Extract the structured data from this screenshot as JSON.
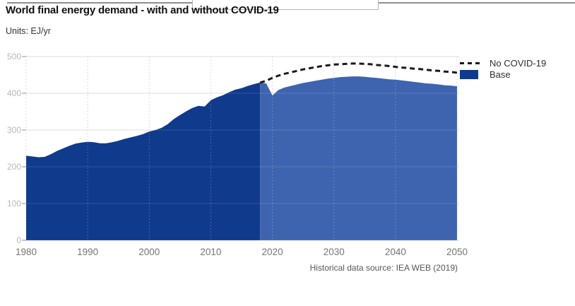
{
  "chart_data": {
    "type": "area",
    "title": "World final energy demand - with and without COVID-19",
    "units_label": "Units: EJ/yr",
    "source_note": "Historical data source: IEA WEB (2019)",
    "xlabel": "",
    "ylabel": "EJ/yr",
    "xlim": [
      1980,
      2050
    ],
    "ylim": [
      0,
      500
    ],
    "x_ticks": [
      1980,
      1990,
      2000,
      2010,
      2020,
      2030,
      2040,
      2050
    ],
    "y_ticks": [
      0,
      100,
      200,
      300,
      400,
      500
    ],
    "grid": {
      "horizontal": "solid",
      "vertical": "dotted"
    },
    "legend_position": "top-right",
    "legend": [
      {
        "label": "No COVID-19",
        "symbol": "dashed-line",
        "color": "#1a1a1a"
      },
      {
        "label": "Base",
        "symbol": "filled-box",
        "color": "#103a8c"
      }
    ],
    "colors": {
      "base_historical": "#103a8c",
      "base_projection": "#3e64af",
      "no_covid_line": "#1a1a1a",
      "gridline": "#d9d9d9",
      "tick_label_y": "#b8b8b8",
      "tick_label_x": "#757575"
    },
    "series": [
      {
        "name": "Base",
        "style": "area",
        "historical_until": 2018,
        "points": [
          [
            1980,
            230
          ],
          [
            1981,
            228
          ],
          [
            1982,
            226
          ],
          [
            1983,
            227
          ],
          [
            1984,
            234
          ],
          [
            1985,
            243
          ],
          [
            1986,
            250
          ],
          [
            1987,
            257
          ],
          [
            1988,
            263
          ],
          [
            1989,
            266
          ],
          [
            1990,
            268
          ],
          [
            1991,
            267
          ],
          [
            1992,
            264
          ],
          [
            1993,
            264
          ],
          [
            1994,
            267
          ],
          [
            1995,
            271
          ],
          [
            1996,
            276
          ],
          [
            1997,
            280
          ],
          [
            1998,
            284
          ],
          [
            1999,
            289
          ],
          [
            2000,
            296
          ],
          [
            2001,
            300
          ],
          [
            2002,
            306
          ],
          [
            2003,
            316
          ],
          [
            2004,
            330
          ],
          [
            2005,
            341
          ],
          [
            2006,
            351
          ],
          [
            2007,
            360
          ],
          [
            2008,
            366
          ],
          [
            2009,
            364
          ],
          [
            2010,
            381
          ],
          [
            2011,
            389
          ],
          [
            2012,
            395
          ],
          [
            2013,
            403
          ],
          [
            2014,
            410
          ],
          [
            2015,
            414
          ],
          [
            2016,
            420
          ],
          [
            2017,
            425
          ],
          [
            2018,
            429
          ],
          [
            2019,
            427
          ],
          [
            2020,
            394
          ],
          [
            2021,
            409
          ],
          [
            2022,
            416
          ],
          [
            2023,
            420
          ],
          [
            2024,
            424
          ],
          [
            2025,
            428
          ],
          [
            2026,
            431
          ],
          [
            2027,
            434
          ],
          [
            2028,
            437
          ],
          [
            2029,
            440
          ],
          [
            2030,
            442
          ],
          [
            2031,
            444
          ],
          [
            2032,
            445
          ],
          [
            2033,
            446
          ],
          [
            2034,
            446
          ],
          [
            2035,
            445
          ],
          [
            2036,
            443
          ],
          [
            2037,
            442
          ],
          [
            2038,
            440
          ],
          [
            2039,
            438
          ],
          [
            2040,
            437
          ],
          [
            2041,
            435
          ],
          [
            2042,
            433
          ],
          [
            2043,
            431
          ],
          [
            2044,
            429
          ],
          [
            2045,
            427
          ],
          [
            2046,
            426
          ],
          [
            2047,
            424
          ],
          [
            2048,
            422
          ],
          [
            2049,
            421
          ],
          [
            2050,
            419
          ]
        ]
      },
      {
        "name": "No COVID-19",
        "style": "dashed-line",
        "points": [
          [
            2018,
            429
          ],
          [
            2019,
            434
          ],
          [
            2020,
            442
          ],
          [
            2021,
            448
          ],
          [
            2022,
            453
          ],
          [
            2023,
            457
          ],
          [
            2024,
            461
          ],
          [
            2025,
            465
          ],
          [
            2026,
            468
          ],
          [
            2027,
            471
          ],
          [
            2028,
            474
          ],
          [
            2029,
            476
          ],
          [
            2030,
            478
          ],
          [
            2031,
            479
          ],
          [
            2032,
            480
          ],
          [
            2033,
            481
          ],
          [
            2034,
            481
          ],
          [
            2035,
            480
          ],
          [
            2036,
            479
          ],
          [
            2037,
            477
          ],
          [
            2038,
            476
          ],
          [
            2039,
            474
          ],
          [
            2040,
            472
          ],
          [
            2041,
            470
          ],
          [
            2042,
            469
          ],
          [
            2043,
            467
          ],
          [
            2044,
            466
          ],
          [
            2045,
            464
          ],
          [
            2046,
            462
          ],
          [
            2047,
            461
          ],
          [
            2048,
            459
          ],
          [
            2049,
            458
          ],
          [
            2050,
            456
          ]
        ]
      }
    ]
  }
}
